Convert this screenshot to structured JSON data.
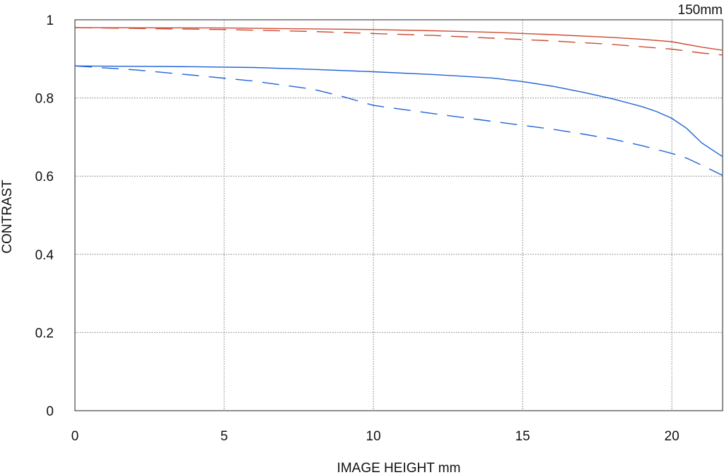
{
  "chart_data": {
    "type": "line",
    "title": "",
    "corner_label": "150mm",
    "xlabel": "IMAGE HEIGHT  mm",
    "ylabel": "CONTRAST",
    "xlim": [
      0,
      21.7
    ],
    "ylim": [
      0,
      1
    ],
    "x_ticks": [
      0,
      5,
      10,
      15,
      20
    ],
    "y_ticks": [
      0,
      0.2,
      0.4,
      0.6,
      0.8,
      1
    ],
    "y_tick_labels": [
      "0",
      "0.2",
      "0.4",
      "0.6",
      "0.8",
      "1"
    ],
    "grid": true,
    "legend": "none",
    "colors": {
      "red": "#cc4a32",
      "blue": "#1f63d6",
      "grid": "#777777"
    },
    "series": [
      {
        "color": "#cc4a32",
        "dash": "solid",
        "x": [
          0,
          5,
          10,
          12,
          14,
          16,
          18,
          19,
          20,
          21,
          21.7
        ],
        "y": [
          0.98,
          0.979,
          0.975,
          0.972,
          0.968,
          0.962,
          0.955,
          0.95,
          0.944,
          0.93,
          0.922
        ]
      },
      {
        "color": "#cc4a32",
        "dash": "dashed",
        "x": [
          0,
          2,
          5,
          8,
          10,
          12,
          14,
          16,
          18,
          20,
          21,
          21.7
        ],
        "y": [
          0.98,
          0.978,
          0.975,
          0.97,
          0.965,
          0.96,
          0.953,
          0.946,
          0.937,
          0.925,
          0.915,
          0.91
        ]
      },
      {
        "color": "#1f63d6",
        "dash": "solid",
        "x": [
          0,
          2,
          4,
          6,
          8,
          10,
          12,
          14,
          15,
          16,
          17,
          18,
          19,
          19.5,
          20,
          20.5,
          21,
          21.7
        ],
        "y": [
          0.882,
          0.881,
          0.88,
          0.878,
          0.873,
          0.867,
          0.86,
          0.851,
          0.842,
          0.83,
          0.815,
          0.798,
          0.778,
          0.765,
          0.748,
          0.722,
          0.685,
          0.65
        ]
      },
      {
        "color": "#1f63d6",
        "dash": "dashed",
        "x": [
          0,
          2,
          4,
          6,
          8,
          9,
          10,
          12,
          14,
          16,
          17,
          18,
          19,
          20,
          20.5,
          21,
          21.7
        ],
        "y": [
          0.882,
          0.872,
          0.858,
          0.843,
          0.822,
          0.803,
          0.781,
          0.76,
          0.74,
          0.72,
          0.708,
          0.695,
          0.678,
          0.658,
          0.646,
          0.628,
          0.602
        ]
      }
    ]
  }
}
